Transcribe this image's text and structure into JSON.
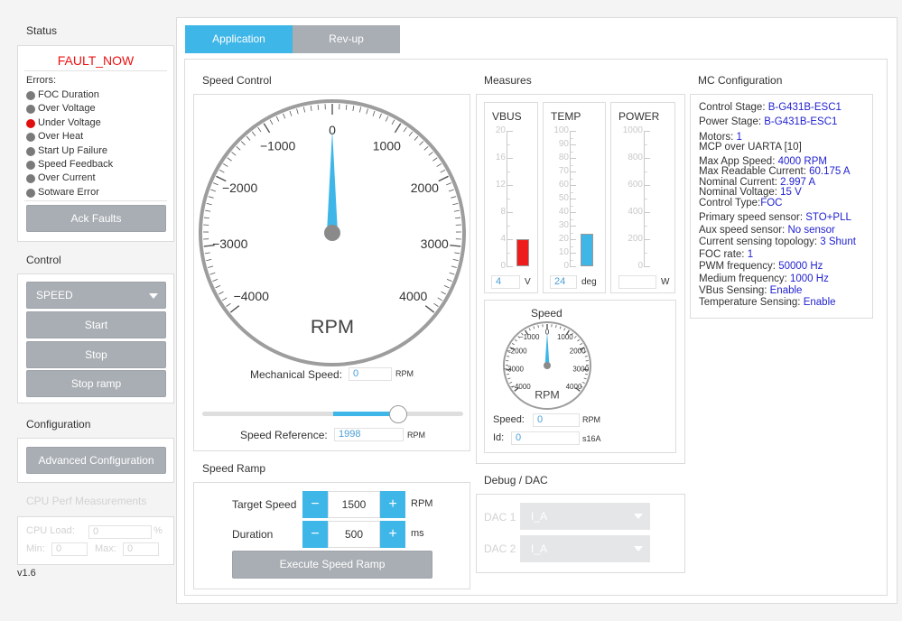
{
  "left": {
    "status_title": "Status",
    "fault_text": "FAULT_NOW",
    "errors_label": "Errors:",
    "errors": [
      {
        "label": "FOC Duration",
        "color": "#7a7a7a"
      },
      {
        "label": "Over Voltage",
        "color": "#7a7a7a"
      },
      {
        "label": "Under Voltage",
        "color": "#e01010"
      },
      {
        "label": "Over Heat",
        "color": "#7a7a7a"
      },
      {
        "label": "Start Up Failure",
        "color": "#7a7a7a"
      },
      {
        "label": "Speed Feedback",
        "color": "#7a7a7a"
      },
      {
        "label": "Over Current",
        "color": "#7a7a7a"
      },
      {
        "label": "Sotware Error",
        "color": "#7a7a7a"
      }
    ],
    "ack_label": "Ack Faults",
    "control_title": "Control",
    "mode_value": "SPEED",
    "start_label": "Start",
    "stop_label": "Stop",
    "stopramp_label": "Stop ramp",
    "config_title": "Configuration",
    "advanced_label": "Advanced Configuration",
    "cpu_title": "CPU Perf Measurements",
    "cpu_load_label": "CPU Load:",
    "cpu_load_value": "0",
    "cpu_unit": "%",
    "min_label": "Min:",
    "min_value": "0",
    "max_label": "Max:",
    "max_value": "0",
    "version": "v1.6"
  },
  "tabs": [
    {
      "label": "Application",
      "active": true
    },
    {
      "label": "Rev-up",
      "active": false
    }
  ],
  "speed_control": {
    "title": "Speed Control",
    "gauge_labels": [
      "0",
      "1000",
      "2000",
      "3000",
      "4000",
      "−1000",
      "−2000",
      "−3000",
      "−4000"
    ],
    "unit": "RPM",
    "needle_value": 0,
    "mech_label": "Mechanical Speed:",
    "mech_value": "0",
    "mech_unit": "RPM",
    "slider_value": 1998,
    "slider_min": -4000,
    "slider_max": 4000,
    "ref_label": "Speed Reference:",
    "ref_value": "1998",
    "ref_unit": "RPM"
  },
  "speed_ramp": {
    "title": "Speed Ramp",
    "target_label": "Target Speed",
    "target_value": "1500",
    "target_unit": "RPM",
    "duration_label": "Duration",
    "duration_value": "500",
    "duration_unit": "ms",
    "minus": "−",
    "plus": "+",
    "execute_label": "Execute Speed Ramp"
  },
  "measures": {
    "title": "Measures",
    "vbus": {
      "title": "VBUS",
      "ticks": [
        "20",
        "16",
        "12",
        "8",
        "4",
        "0"
      ],
      "max": 20,
      "value": 4,
      "display": "4",
      "unit": "V",
      "color": "#ee1c1c"
    },
    "temp": {
      "title": "TEMP",
      "ticks": [
        "100",
        "90",
        "80",
        "70",
        "60",
        "50",
        "40",
        "30",
        "20",
        "10",
        "0"
      ],
      "max": 100,
      "value": 24,
      "display": "24",
      "unit": "deg",
      "color": "#3fb6e8"
    },
    "power": {
      "title": "POWER",
      "ticks": [
        "1000",
        "800",
        "600",
        "400",
        "200",
        "0"
      ],
      "max": 1000,
      "value": 0,
      "display": "",
      "unit": "W",
      "color": "#3fb6e8"
    },
    "mini_title": "Speed",
    "mini_labels": [
      "0",
      "1000",
      "2000",
      "3000",
      "4000",
      "−1000",
      "−2000",
      "−3000",
      "−4000"
    ],
    "mini_unit": "RPM",
    "speed_label": "Speed:",
    "speed_value": "0",
    "speed_unit": "RPM",
    "id_label": "Id:",
    "id_value": "0",
    "id_unit": "s16A"
  },
  "debug": {
    "title": "Debug / DAC",
    "dac1_label": "DAC 1",
    "dac1_value": "I_A",
    "dac2_label": "DAC 2",
    "dac2_value": "I_A"
  },
  "mc_config": {
    "title": "MC Configuration",
    "control_stage_label": "Control Stage:",
    "control_stage_value": "B-G431B-ESC1",
    "power_stage_label": "Power Stage:",
    "power_stage_value": "B-G431B-ESC1",
    "motors_label": "Motors:",
    "motors_value": "1",
    "mcp_value": "MCP over UARTA [10]",
    "max_app_speed_label": "Max App Speed:",
    "max_app_speed_value": "4000 RPM",
    "max_readable_current_label": "Max Readable Current:",
    "max_readable_current_value": "60.175 A",
    "nominal_current_label": "Nominal Current:",
    "nominal_current_value": "2.997 A",
    "nominal_voltage_label": "Nominal Voltage:",
    "nominal_voltage_value": "15 V",
    "control_type_label": "Control Type:",
    "control_type_value": "FOC",
    "primary_speed_label": "Primary speed sensor:",
    "primary_speed_value": "STO+PLL",
    "aux_speed_label": "Aux speed sensor:",
    "aux_speed_value": "No sensor",
    "current_topology_label": "Current sensing topology:",
    "current_topology_value": "3 Shunt",
    "foc_rate_label": "FOC rate:",
    "foc_rate_value": "1",
    "pwm_freq_label": "PWM frequency:",
    "pwm_freq_value": "50000 Hz",
    "medium_freq_label": "Medium frequency:",
    "medium_freq_value": "1000 Hz",
    "vbus_sensing_label": "VBus Sensing:",
    "vbus_sensing_value": "Enable",
    "temp_sensing_label": "Temperature Sensing:",
    "temp_sensing_value": "Enable"
  },
  "colors": {
    "accent": "#3fb6e8",
    "fault": "#ee1111",
    "button": "#a9aeb4",
    "link": "#1f1fd0"
  }
}
